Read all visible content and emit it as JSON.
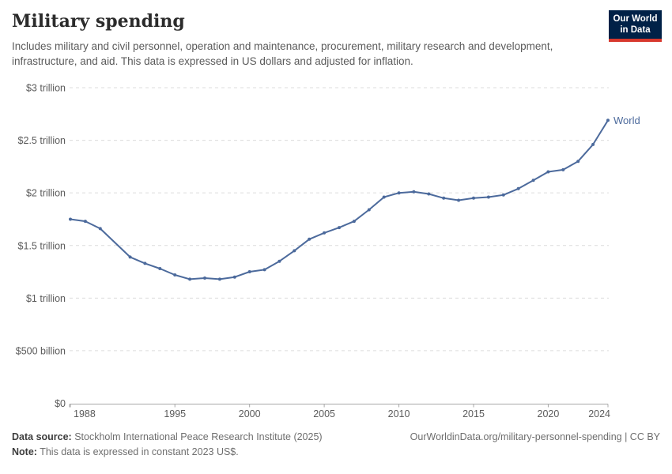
{
  "header": {
    "title": "Military spending",
    "subtitle": "Includes military and civil personnel, operation and maintenance, procurement, military research and development, infrastructure, and aid. This data is expressed in US dollars and adjusted for inflation.",
    "logo": {
      "line1": "Our World",
      "line2": "in Data",
      "bg_color": "#002147",
      "stripe_color": "#d7382d"
    }
  },
  "chart_data": {
    "type": "line",
    "title": "Military spending",
    "xlabel": "",
    "ylabel": "",
    "unit": "trillion US$ (constant 2023)",
    "x_range": [
      1988,
      2024
    ],
    "y_range": [
      0,
      3
    ],
    "grid": true,
    "missing_years": [
      1991
    ],
    "x_ticks": [
      1988,
      1995,
      2000,
      2005,
      2010,
      2015,
      2020,
      2024
    ],
    "y_ticks": [
      {
        "value": 0,
        "label": "$0"
      },
      {
        "value": 0.5,
        "label": "$500 billion"
      },
      {
        "value": 1,
        "label": "$1 trillion"
      },
      {
        "value": 1.5,
        "label": "$1.5 trillion"
      },
      {
        "value": 2,
        "label": "$2 trillion"
      },
      {
        "value": 2.5,
        "label": "$2.5 trillion"
      },
      {
        "value": 3,
        "label": "$3 trillion"
      }
    ],
    "series": [
      {
        "name": "World",
        "color": "#4c6a9c",
        "points": [
          [
            1988,
            1.75
          ],
          [
            1989,
            1.73
          ],
          [
            1990,
            1.66
          ],
          [
            1992,
            1.39
          ],
          [
            1993,
            1.33
          ],
          [
            1994,
            1.28
          ],
          [
            1995,
            1.22
          ],
          [
            1996,
            1.18
          ],
          [
            1997,
            1.19
          ],
          [
            1998,
            1.18
          ],
          [
            1999,
            1.2
          ],
          [
            2000,
            1.25
          ],
          [
            2001,
            1.27
          ],
          [
            2002,
            1.35
          ],
          [
            2003,
            1.45
          ],
          [
            2004,
            1.56
          ],
          [
            2005,
            1.62
          ],
          [
            2006,
            1.67
          ],
          [
            2007,
            1.73
          ],
          [
            2008,
            1.84
          ],
          [
            2009,
            1.96
          ],
          [
            2010,
            2.0
          ],
          [
            2011,
            2.01
          ],
          [
            2012,
            1.99
          ],
          [
            2013,
            1.95
          ],
          [
            2014,
            1.93
          ],
          [
            2015,
            1.95
          ],
          [
            2016,
            1.96
          ],
          [
            2017,
            1.98
          ],
          [
            2018,
            2.04
          ],
          [
            2019,
            2.12
          ],
          [
            2020,
            2.2
          ],
          [
            2021,
            2.22
          ],
          [
            2022,
            2.3
          ],
          [
            2023,
            2.46
          ],
          [
            2024,
            2.69
          ]
        ]
      }
    ],
    "end_label": "World"
  },
  "footer": {
    "source_label": "Data source:",
    "source_text": " Stockholm International Peace Research Institute (2025)",
    "note_label": "Note:",
    "note_text": " This data is expressed in constant 2023 US$.",
    "link": "OurWorldinData.org/military-personnel-spending | CC BY"
  },
  "colors": {
    "line": "#4c6a9c",
    "gridline": "#dcdcdc",
    "axis": "#a8a8a8",
    "tick_label": "#5b5b5b"
  }
}
